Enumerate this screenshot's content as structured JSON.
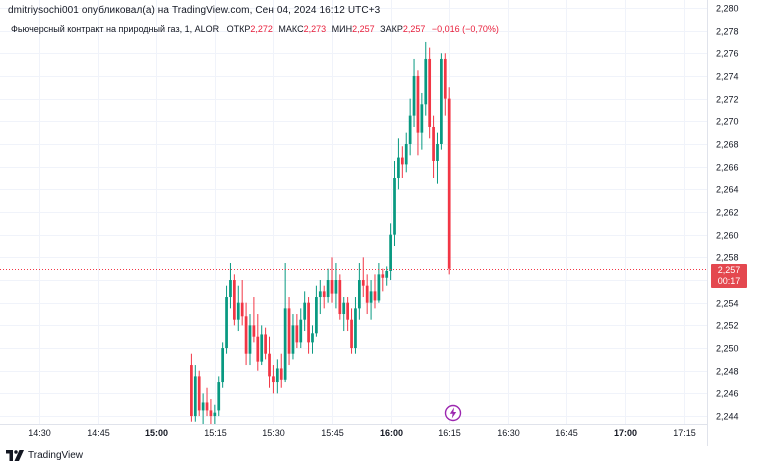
{
  "header": {
    "publisher_line": "dmitriysochi001 опубликовал(а) на TradingView.com, Сен 04, 2024 16:12 UTC+3"
  },
  "legend": {
    "symbol": "Фьючерсный контракт на природный газ, 1, ALOR",
    "open_label": "ОТКР",
    "open_value": "2,272",
    "high_label": "МАКС",
    "high_value": "2,273",
    "low_label": "МИН",
    "low_value": "2,257",
    "close_label": "ЗАКР",
    "close_value": "2,257",
    "change": "−0,016 (−0,70%)"
  },
  "price_badge": {
    "price": "2,257",
    "countdown": "00:17"
  },
  "footer": {
    "brand": "TradingView"
  },
  "colors": {
    "up": "#089981",
    "down": "#f23645",
    "badge": "#e4484f",
    "grid": "#f0f3fa",
    "text": "#131722"
  },
  "icons": {
    "bolt": "lightning-bolt-icon",
    "logo": "tradingview-logo-icon"
  },
  "chart_data": {
    "type": "candlestick",
    "y_ticks": [
      "2,244",
      "2,246",
      "2,248",
      "2,250",
      "2,252",
      "2,254",
      "2,256",
      "2,258",
      "2,260",
      "2,262",
      "2,264",
      "2,266",
      "2,268",
      "2,270",
      "2,272",
      "2,274",
      "2,276",
      "2,278",
      "2,280"
    ],
    "x_ticks": [
      "14:30",
      "14:45",
      "15:00",
      "15:15",
      "15:30",
      "15:45",
      "16:00",
      "16:15",
      "16:30",
      "16:45",
      "17:00",
      "17:15"
    ],
    "x_ticks_bold": [
      "15:00",
      "16:00",
      "17:00"
    ],
    "ylim": [
      2.2433,
      2.2807
    ],
    "xlim_minutes": [
      860,
      1041
    ],
    "last_price": 2.257,
    "candles": [
      {
        "t": 909,
        "o": 2.2485,
        "h": 2.2495,
        "l": 2.2435,
        "c": 2.244
      },
      {
        "t": 910,
        "o": 2.244,
        "h": 2.2485,
        "l": 2.2435,
        "c": 2.2475
      },
      {
        "t": 911,
        "o": 2.2475,
        "h": 2.248,
        "l": 2.244,
        "c": 2.2445
      },
      {
        "t": 912,
        "o": 2.2445,
        "h": 2.246,
        "l": 2.2433,
        "c": 2.2452
      },
      {
        "t": 913,
        "o": 2.2452,
        "h": 2.2465,
        "l": 2.244,
        "c": 2.2445
      },
      {
        "t": 914,
        "o": 2.2445,
        "h": 2.2455,
        "l": 2.2433,
        "c": 2.244
      },
      {
        "t": 915,
        "o": 2.244,
        "h": 2.245,
        "l": 2.2433,
        "c": 2.2443
      },
      {
        "t": 916,
        "o": 2.2445,
        "h": 2.2475,
        "l": 2.244,
        "c": 2.247
      },
      {
        "t": 917,
        "o": 2.247,
        "h": 2.2505,
        "l": 2.2465,
        "c": 2.25
      },
      {
        "t": 918,
        "o": 2.25,
        "h": 2.2555,
        "l": 2.2495,
        "c": 2.2545
      },
      {
        "t": 919,
        "o": 2.2545,
        "h": 2.2575,
        "l": 2.2535,
        "c": 2.256
      },
      {
        "t": 920,
        "o": 2.256,
        "h": 2.2565,
        "l": 2.252,
        "c": 2.2525
      },
      {
        "t": 921,
        "o": 2.2525,
        "h": 2.2555,
        "l": 2.2515,
        "c": 2.254
      },
      {
        "t": 922,
        "o": 2.254,
        "h": 2.256,
        "l": 2.252,
        "c": 2.2528
      },
      {
        "t": 923,
        "o": 2.2528,
        "h": 2.254,
        "l": 2.2485,
        "c": 2.2495
      },
      {
        "t": 924,
        "o": 2.2495,
        "h": 2.253,
        "l": 2.2485,
        "c": 2.252
      },
      {
        "t": 925,
        "o": 2.252,
        "h": 2.2545,
        "l": 2.2505,
        "c": 2.251
      },
      {
        "t": 926,
        "o": 2.251,
        "h": 2.253,
        "l": 2.248,
        "c": 2.2488
      },
      {
        "t": 927,
        "o": 2.2488,
        "h": 2.252,
        "l": 2.2485,
        "c": 2.2512
      },
      {
        "t": 928,
        "o": 2.2512,
        "h": 2.2518,
        "l": 2.249,
        "c": 2.2495
      },
      {
        "t": 929,
        "o": 2.2495,
        "h": 2.251,
        "l": 2.2465,
        "c": 2.2475
      },
      {
        "t": 930,
        "o": 2.2475,
        "h": 2.2485,
        "l": 2.246,
        "c": 2.247
      },
      {
        "t": 931,
        "o": 2.247,
        "h": 2.249,
        "l": 2.246,
        "c": 2.2482
      },
      {
        "t": 932,
        "o": 2.2482,
        "h": 2.2495,
        "l": 2.2465,
        "c": 2.2472
      },
      {
        "t": 933,
        "o": 2.2472,
        "h": 2.2575,
        "l": 2.247,
        "c": 2.2535
      },
      {
        "t": 934,
        "o": 2.2535,
        "h": 2.2545,
        "l": 2.2485,
        "c": 2.2495
      },
      {
        "t": 935,
        "o": 2.2495,
        "h": 2.253,
        "l": 2.249,
        "c": 2.252
      },
      {
        "t": 936,
        "o": 2.252,
        "h": 2.253,
        "l": 2.25,
        "c": 2.2505
      },
      {
        "t": 937,
        "o": 2.2505,
        "h": 2.2535,
        "l": 2.25,
        "c": 2.2525
      },
      {
        "t": 938,
        "o": 2.2525,
        "h": 2.255,
        "l": 2.2515,
        "c": 2.254
      },
      {
        "t": 939,
        "o": 2.254,
        "h": 2.2545,
        "l": 2.2495,
        "c": 2.2505
      },
      {
        "t": 940,
        "o": 2.2505,
        "h": 2.252,
        "l": 2.2495,
        "c": 2.2513
      },
      {
        "t": 941,
        "o": 2.2513,
        "h": 2.2555,
        "l": 2.251,
        "c": 2.2545
      },
      {
        "t": 942,
        "o": 2.2545,
        "h": 2.256,
        "l": 2.253,
        "c": 2.255
      },
      {
        "t": 943,
        "o": 2.255,
        "h": 2.2555,
        "l": 2.2535,
        "c": 2.2545
      },
      {
        "t": 944,
        "o": 2.2545,
        "h": 2.257,
        "l": 2.254,
        "c": 2.256
      },
      {
        "t": 945,
        "o": 2.256,
        "h": 2.258,
        "l": 2.254,
        "c": 2.2548
      },
      {
        "t": 946,
        "o": 2.2548,
        "h": 2.2575,
        "l": 2.2535,
        "c": 2.256
      },
      {
        "t": 947,
        "o": 2.256,
        "h": 2.2565,
        "l": 2.2525,
        "c": 2.253
      },
      {
        "t": 948,
        "o": 2.253,
        "h": 2.2545,
        "l": 2.2515,
        "c": 2.254
      },
      {
        "t": 949,
        "o": 2.254,
        "h": 2.2545,
        "l": 2.2515,
        "c": 2.2525
      },
      {
        "t": 950,
        "o": 2.2525,
        "h": 2.2535,
        "l": 2.2495,
        "c": 2.25
      },
      {
        "t": 951,
        "o": 2.25,
        "h": 2.2545,
        "l": 2.2495,
        "c": 2.2535
      },
      {
        "t": 952,
        "o": 2.2535,
        "h": 2.2575,
        "l": 2.2525,
        "c": 2.256
      },
      {
        "t": 953,
        "o": 2.256,
        "h": 2.258,
        "l": 2.2545,
        "c": 2.2555
      },
      {
        "t": 954,
        "o": 2.2555,
        "h": 2.2565,
        "l": 2.253,
        "c": 2.254
      },
      {
        "t": 955,
        "o": 2.254,
        "h": 2.256,
        "l": 2.2525,
        "c": 2.255
      },
      {
        "t": 956,
        "o": 2.255,
        "h": 2.2565,
        "l": 2.2535,
        "c": 2.2542
      },
      {
        "t": 957,
        "o": 2.2542,
        "h": 2.2575,
        "l": 2.254,
        "c": 2.2565
      },
      {
        "t": 958,
        "o": 2.2565,
        "h": 2.257,
        "l": 2.255,
        "c": 2.2562
      },
      {
        "t": 959,
        "o": 2.2562,
        "h": 2.2572,
        "l": 2.2555,
        "c": 2.2568
      },
      {
        "t": 960,
        "o": 2.2568,
        "h": 2.261,
        "l": 2.256,
        "c": 2.26
      },
      {
        "t": 961,
        "o": 2.26,
        "h": 2.2665,
        "l": 2.259,
        "c": 2.265
      },
      {
        "t": 962,
        "o": 2.265,
        "h": 2.2685,
        "l": 2.264,
        "c": 2.2668
      },
      {
        "t": 963,
        "o": 2.2668,
        "h": 2.2678,
        "l": 2.265,
        "c": 2.2662
      },
      {
        "t": 964,
        "o": 2.2662,
        "h": 2.269,
        "l": 2.2655,
        "c": 2.268
      },
      {
        "t": 965,
        "o": 2.268,
        "h": 2.272,
        "l": 2.267,
        "c": 2.2705
      },
      {
        "t": 966,
        "o": 2.2705,
        "h": 2.2755,
        "l": 2.2695,
        "c": 2.274
      },
      {
        "t": 967,
        "o": 2.274,
        "h": 2.2745,
        "l": 2.267,
        "c": 2.269
      },
      {
        "t": 968,
        "o": 2.269,
        "h": 2.2725,
        "l": 2.2675,
        "c": 2.2715
      },
      {
        "t": 969,
        "o": 2.2715,
        "h": 2.277,
        "l": 2.2705,
        "c": 2.2755
      },
      {
        "t": 970,
        "o": 2.2755,
        "h": 2.2765,
        "l": 2.2685,
        "c": 2.2695
      },
      {
        "t": 971,
        "o": 2.2695,
        "h": 2.2705,
        "l": 2.265,
        "c": 2.2665
      },
      {
        "t": 972,
        "o": 2.2665,
        "h": 2.269,
        "l": 2.2645,
        "c": 2.268
      },
      {
        "t": 973,
        "o": 2.268,
        "h": 2.276,
        "l": 2.2675,
        "c": 2.2755
      },
      {
        "t": 974,
        "o": 2.2755,
        "h": 2.276,
        "l": 2.2705,
        "c": 2.272
      },
      {
        "t": 975,
        "o": 2.272,
        "h": 2.273,
        "l": 2.2565,
        "c": 2.257
      }
    ]
  }
}
